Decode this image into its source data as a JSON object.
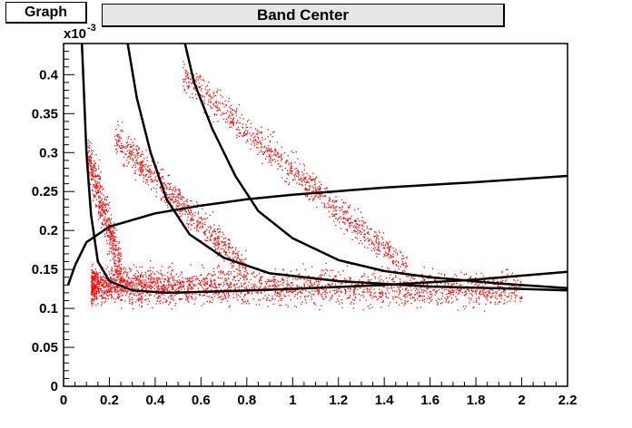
{
  "header": {
    "graph_label": "Graph",
    "title": "Band Center"
  },
  "chart_data": {
    "type": "scatter",
    "title": "Band Center",
    "xlabel": "",
    "ylabel": "",
    "y_multiplier_label": "x10",
    "y_multiplier_exponent": "-3",
    "xlim": [
      0,
      2.2
    ],
    "ylim": [
      0,
      0.44
    ],
    "x_ticks": [
      "0",
      "0.2",
      "0.4",
      "0.6",
      "0.8",
      "1",
      "1.2",
      "1.4",
      "1.6",
      "1.8",
      "2",
      "2.2"
    ],
    "x_tick_values": [
      0,
      0.2,
      0.4,
      0.6,
      0.8,
      1.0,
      1.2,
      1.4,
      1.6,
      1.8,
      2.0,
      2.2
    ],
    "y_ticks": [
      "0",
      "0.05",
      "0.1",
      "0.15",
      "0.2",
      "0.25",
      "0.3",
      "0.35",
      "0.4"
    ],
    "y_tick_values": [
      0,
      0.05,
      0.1,
      0.15,
      0.2,
      0.25,
      0.3,
      0.35,
      0.4
    ],
    "grid": false,
    "legend": "none",
    "scatter_color": "#ff0000",
    "curve_color": "#000000",
    "scatter_clusters": [
      {
        "name_hint": "dense band",
        "x_range": [
          0.12,
          2.0
        ],
        "y_center": [
          0.13,
          0.125
        ],
        "spread": 0.022
      },
      {
        "name_hint": "left branch",
        "x_range": [
          0.1,
          0.25
        ],
        "y_center": [
          0.3,
          0.15
        ],
        "spread": 0.03
      },
      {
        "name_hint": "middle branch",
        "x_range": [
          0.22,
          0.8
        ],
        "y_center": [
          0.32,
          0.15
        ],
        "spread": 0.02
      },
      {
        "name_hint": "right branch",
        "x_range": [
          0.52,
          1.5
        ],
        "y_center": [
          0.4,
          0.15
        ],
        "spread": 0.02
      }
    ],
    "curves": [
      {
        "kind": "rising",
        "points": [
          [
            0.02,
            0.13
          ],
          [
            0.05,
            0.155
          ],
          [
            0.1,
            0.185
          ],
          [
            0.2,
            0.205
          ],
          [
            0.4,
            0.222
          ],
          [
            0.6,
            0.232
          ],
          [
            0.8,
            0.24
          ],
          [
            1.0,
            0.246
          ],
          [
            1.4,
            0.255
          ],
          [
            1.8,
            0.262
          ],
          [
            2.2,
            0.27
          ]
        ]
      },
      {
        "kind": "steep-decay",
        "points": [
          [
            0.08,
            0.44
          ],
          [
            0.1,
            0.3
          ],
          [
            0.12,
            0.22
          ],
          [
            0.15,
            0.16
          ],
          [
            0.2,
            0.135
          ],
          [
            0.3,
            0.123
          ],
          [
            0.45,
            0.12
          ],
          [
            0.7,
            0.122
          ],
          [
            1.0,
            0.125
          ],
          [
            1.4,
            0.13
          ],
          [
            1.8,
            0.137
          ],
          [
            2.2,
            0.147
          ]
        ]
      },
      {
        "kind": "middle-decay",
        "points": [
          [
            0.28,
            0.44
          ],
          [
            0.32,
            0.37
          ],
          [
            0.38,
            0.3
          ],
          [
            0.45,
            0.24
          ],
          [
            0.55,
            0.195
          ],
          [
            0.7,
            0.165
          ],
          [
            0.9,
            0.145
          ],
          [
            1.2,
            0.135
          ],
          [
            1.6,
            0.128
          ],
          [
            2.0,
            0.125
          ],
          [
            2.2,
            0.123
          ]
        ]
      },
      {
        "kind": "right-decay",
        "points": [
          [
            0.53,
            0.44
          ],
          [
            0.57,
            0.39
          ],
          [
            0.65,
            0.33
          ],
          [
            0.75,
            0.27
          ],
          [
            0.85,
            0.225
          ],
          [
            1.0,
            0.19
          ],
          [
            1.2,
            0.162
          ],
          [
            1.4,
            0.148
          ],
          [
            1.6,
            0.14
          ],
          [
            1.9,
            0.132
          ],
          [
            2.2,
            0.126
          ]
        ]
      }
    ]
  }
}
